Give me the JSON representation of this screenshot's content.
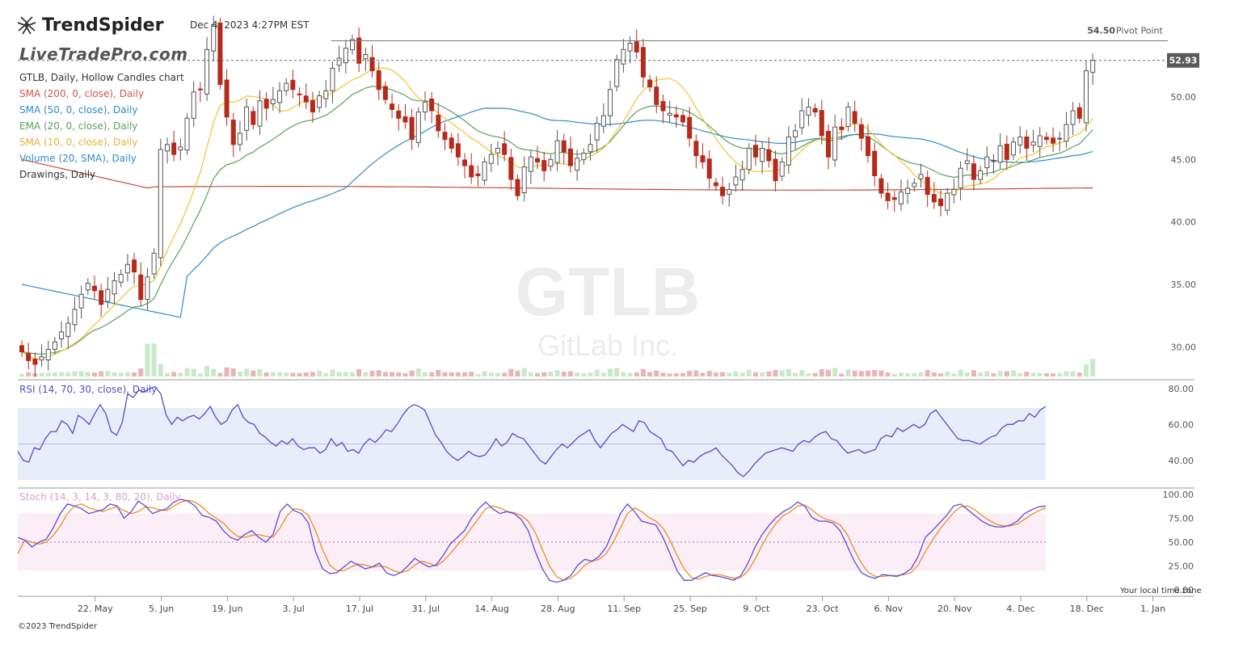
{
  "header": {
    "brand": "TrendSpider",
    "watermark_brand": "LiveTradePro.com",
    "timestamp": "Dec 4, 2023 4:27PM EST",
    "symbol_big": "GTLB",
    "company": "GitLab Inc.",
    "copyright": "©2023 TrendSpider",
    "local_time": "Your local time zone"
  },
  "legend": [
    {
      "text": "GTLB, Daily, Hollow Candles chart",
      "color": "#333333"
    },
    {
      "text": "SMA (200, 0, close), Daily",
      "color": "#d9534f"
    },
    {
      "text": "SMA (50, 0, close), Daily",
      "color": "#2e8bc9"
    },
    {
      "text": "EMA (20, 0, close), Daily",
      "color": "#5aa05a"
    },
    {
      "text": "SMA (10, 0, close), Daily",
      "color": "#e3b23c"
    },
    {
      "text": "Volume (20, SMA), Daily",
      "color": "#2e8bc9"
    },
    {
      "text": "Drawings, Daily",
      "color": "#333333"
    }
  ],
  "rsi_label": "RSI (14, 70, 30, close), Daily",
  "stoch_label": "Stoch (14, 3, 14, 3, 80, 20), Daily",
  "colors": {
    "up": "#555555",
    "down": "#b52a1a",
    "sma200": "#c9463a",
    "sma50": "#2e8bc9",
    "ema20": "#5aa05a",
    "sma10": "#f0c430",
    "rsi": "#5050cc",
    "stoch_k": "#5b4bdc",
    "stoch_d": "#f08a24",
    "rsi_band": "#e9ecf9",
    "stoch_band": "#fbeef7",
    "vol_up": "#c8e9c8",
    "vol_down": "#e8b4b4"
  },
  "chart_data": {
    "type": "candlestick",
    "price_axis": {
      "ticks": [
        "30.00",
        "35.00",
        "40.00",
        "45.00",
        "50.00"
      ],
      "min": 27.5,
      "max": 55.5
    },
    "pivot": {
      "value": 54.5,
      "label": "Pivot Point",
      "value_label": "54.50"
    },
    "last_price": {
      "value": 52.93,
      "label": "52.93"
    },
    "x_axis": {
      "labels": [
        "22. May",
        "5. Jun",
        "19. Jun",
        "3. Jul",
        "17. Jul",
        "31. Jul",
        "14. Aug",
        "28. Aug",
        "11. Sep",
        "25. Sep",
        "9. Oct",
        "23. Oct",
        "6. Nov",
        "20. Nov",
        "4. Dec",
        "18. Dec",
        "1. Jan"
      ],
      "label_bar_index": [
        10,
        20,
        30,
        40,
        50,
        60,
        70,
        80,
        90,
        100,
        110,
        120,
        130,
        140,
        150,
        160,
        170
      ]
    },
    "closes": [
      29.6,
      28.9,
      28.6,
      29.2,
      29.8,
      30.4,
      31.2,
      31.9,
      33.0,
      34.2,
      35.1,
      34.5,
      33.4,
      34.6,
      35.3,
      35.8,
      36.6,
      36.0,
      33.8,
      35.6,
      37.5,
      45.8,
      46.2,
      45.4,
      46.0,
      48.3,
      50.4,
      50.6,
      53.8,
      55.8,
      51.0,
      48.4,
      46.2,
      47.1,
      49.2,
      47.8,
      49.7,
      49.1,
      49.8,
      50.5,
      51.1,
      50.6,
      50.2,
      49.6,
      48.8,
      50.1,
      50.5,
      52.3,
      53.1,
      53.9,
      54.6,
      52.7,
      53.4,
      52.1,
      50.6,
      49.8,
      49.0,
      48.3,
      48.0,
      46.6,
      48.8,
      49.6,
      48.9,
      47.3,
      46.6,
      45.9,
      45.2,
      44.5,
      43.6,
      43.7,
      44.8,
      45.4,
      45.9,
      45.4,
      43.4,
      42.1,
      44.4,
      45.2,
      44.8,
      44.1,
      45.0,
      46.5,
      45.6,
      44.5,
      45.1,
      45.5,
      46.2,
      47.9,
      48.5,
      50.6,
      53.0,
      53.8,
      54.3,
      53.6,
      51.6,
      50.8,
      49.4,
      48.9,
      48.7,
      48.4,
      48.0,
      46.7,
      45.3,
      44.8,
      43.5,
      42.9,
      42.1,
      42.6,
      43.6,
      44.2,
      45.9,
      45.2,
      45.9,
      44.9,
      43.3,
      44.8,
      46.8,
      47.3,
      48.9,
      49.2,
      48.8,
      46.9,
      45.2,
      47.6,
      47.4,
      49.2,
      47.9,
      46.7,
      45.3,
      43.7,
      42.3,
      41.7,
      41.8,
      42.4,
      42.7,
      43.1,
      43.8,
      42.2,
      41.6,
      41.3,
      42.3,
      42.6,
      44.3,
      44.9,
      43.4,
      44.1,
      45.2,
      44.9,
      46.1,
      45.0,
      46.4,
      46.8,
      45.9,
      46.4,
      46.9,
      46.6,
      46.3,
      46.7,
      47.8,
      48.9,
      48.3,
      52.1,
      52.93
    ],
    "rsi": {
      "ticks": [
        "40.00",
        "60.00",
        "80.00"
      ],
      "overbought": 70,
      "oversold": 30,
      "values": [
        45,
        40,
        39,
        47,
        46,
        52,
        56,
        56,
        62,
        60,
        55,
        65,
        63,
        60,
        66,
        71,
        66,
        56,
        54,
        61,
        77,
        75,
        79,
        78,
        80,
        81,
        77,
        65,
        60,
        64,
        62,
        64,
        65,
        63,
        66,
        70,
        64,
        60,
        62,
        68,
        71,
        64,
        61,
        60,
        55,
        53,
        50,
        48,
        51,
        49,
        52,
        48,
        46,
        47,
        47,
        44,
        46,
        52,
        48,
        50,
        45,
        46,
        44,
        49,
        52,
        50,
        53,
        57,
        56,
        60,
        65,
        69,
        71,
        70,
        68,
        61,
        54,
        50,
        45,
        42,
        40,
        42,
        45,
        43,
        42,
        43,
        47,
        52,
        48,
        50,
        55,
        53,
        52,
        48,
        44,
        40,
        38,
        42,
        46,
        49,
        47,
        50,
        53,
        55,
        57,
        51,
        47,
        51,
        55,
        57,
        60,
        58,
        56,
        62,
        61,
        56,
        54,
        52,
        46,
        45,
        41,
        37,
        40,
        39,
        42,
        44,
        45,
        47,
        43,
        40,
        37,
        33,
        31,
        34,
        38,
        41,
        44,
        45,
        46,
        47,
        46,
        45,
        49,
        51,
        50,
        53,
        55,
        56,
        52,
        51,
        47,
        44,
        45,
        46,
        44,
        45,
        46,
        52,
        54,
        53,
        58,
        56,
        58,
        60,
        58,
        60,
        66,
        68,
        64,
        60,
        56,
        52,
        51,
        51,
        50,
        49,
        51,
        53,
        54,
        58,
        60,
        60,
        62,
        62,
        66,
        64,
        68,
        70
      ]
    },
    "stoch": {
      "ticks": [
        "25.00",
        "50.00",
        "75.00",
        "100.00"
      ],
      "overbought": 80,
      "oversold": 20,
      "k": [
        55,
        52,
        45,
        50,
        53,
        65,
        80,
        90,
        88,
        85,
        80,
        82,
        84,
        90,
        88,
        75,
        82,
        93,
        88,
        80,
        83,
        85,
        92,
        95,
        93,
        88,
        78,
        76,
        72,
        62,
        55,
        52,
        58,
        62,
        55,
        50,
        58,
        82,
        90,
        83,
        80,
        70,
        40,
        22,
        17,
        18,
        24,
        30,
        26,
        22,
        24,
        28,
        18,
        15,
        18,
        25,
        33,
        28,
        24,
        26,
        36,
        48,
        55,
        62,
        75,
        85,
        92,
        85,
        80,
        82,
        80,
        74,
        62,
        40,
        22,
        10,
        8,
        10,
        15,
        26,
        32,
        30,
        35,
        45,
        62,
        80,
        90,
        82,
        72,
        70,
        68,
        55,
        38,
        20,
        10,
        10,
        14,
        18,
        15,
        14,
        12,
        10,
        15,
        28,
        45,
        58,
        68,
        76,
        82,
        86,
        92,
        88,
        76,
        72,
        72,
        70,
        62,
        46,
        30,
        18,
        14,
        12,
        16,
        15,
        14,
        17,
        22,
        35,
        55,
        62,
        70,
        78,
        88,
        90,
        84,
        78,
        72,
        68,
        66,
        66,
        68,
        72,
        80,
        84,
        87,
        88
      ],
      "d": [
        38,
        52,
        50,
        48,
        50,
        57,
        67,
        80,
        88,
        90,
        86,
        84,
        82,
        85,
        87,
        83,
        80,
        82,
        87,
        86,
        84,
        83,
        88,
        92,
        94,
        92,
        87,
        80,
        75,
        70,
        62,
        56,
        55,
        57,
        58,
        56,
        55,
        65,
        78,
        85,
        84,
        78,
        62,
        42,
        26,
        20,
        20,
        24,
        27,
        26,
        24,
        25,
        24,
        20,
        18,
        20,
        26,
        30,
        28,
        25,
        30,
        38,
        47,
        55,
        65,
        75,
        85,
        88,
        86,
        82,
        81,
        78,
        72,
        60,
        42,
        25,
        14,
        10,
        12,
        18,
        26,
        30,
        32,
        38,
        50,
        65,
        80,
        86,
        82,
        76,
        72,
        65,
        52,
        36,
        22,
        13,
        11,
        14,
        16,
        16,
        14,
        12,
        13,
        20,
        32,
        47,
        60,
        70,
        78,
        82,
        88,
        89,
        84,
        78,
        74,
        72,
        68,
        58,
        42,
        28,
        18,
        14,
        14,
        15,
        15,
        16,
        18,
        26,
        40,
        52,
        63,
        72,
        81,
        87,
        88,
        84,
        78,
        73,
        69,
        67,
        67,
        69,
        74,
        79,
        83,
        86
      ]
    }
  }
}
